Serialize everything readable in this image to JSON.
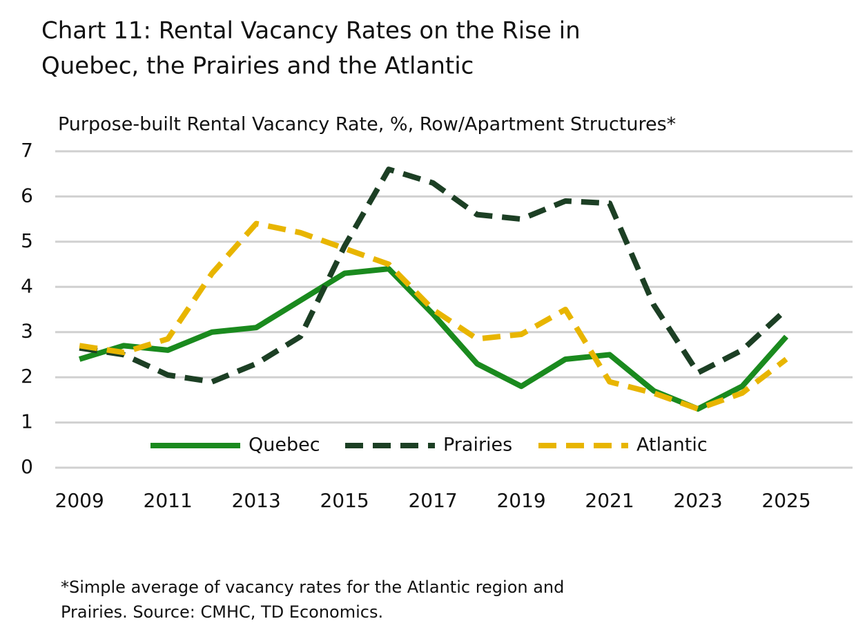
{
  "chart_data": {
    "type": "line",
    "title": [
      "Chart 11: Rental Vacancy Rates on the Rise in",
      "Quebec, the Prairies and the Atlantic"
    ],
    "subtitle": "Purpose-built Rental Vacancy Rate, %, Row/Apartment Structures*",
    "footnote": [
      "*Simple average of vacancy rates for the Atlantic region and",
      "Prairies. Source: CMHC, TD Economics."
    ],
    "x": [
      2009,
      2010,
      2011,
      2012,
      2013,
      2014,
      2015,
      2016,
      2017,
      2018,
      2019,
      2020,
      2021,
      2022,
      2023,
      2024,
      2025
    ],
    "series": [
      {
        "name": "Quebec",
        "color": "#1a8a1e",
        "dash": "solid",
        "values": [
          2.4,
          2.7,
          2.6,
          3.0,
          3.1,
          3.7,
          4.3,
          4.4,
          3.4,
          2.3,
          1.8,
          2.4,
          2.5,
          1.7,
          1.3,
          1.8,
          2.9
        ]
      },
      {
        "name": "Prairies",
        "color": "#1c3f24",
        "dash": "dashed",
        "values": [
          2.65,
          2.5,
          2.05,
          1.9,
          2.3,
          2.9,
          4.9,
          6.6,
          6.3,
          5.6,
          5.5,
          5.9,
          5.85,
          3.6,
          2.1,
          2.6,
          3.5
        ]
      },
      {
        "name": "Atlantic",
        "color": "#e8b500",
        "dash": "dashed",
        "values": [
          2.7,
          2.55,
          2.85,
          4.3,
          5.4,
          5.2,
          4.85,
          4.5,
          3.5,
          2.85,
          2.95,
          3.5,
          1.9,
          1.65,
          1.3,
          1.65,
          2.4
        ]
      }
    ],
    "xlim": [
      2008.45,
      2026.5
    ],
    "xticks": [
      2009,
      2011,
      2013,
      2015,
      2017,
      2019,
      2021,
      2023,
      2025
    ],
    "ylim": [
      0,
      7
    ],
    "yticks": [
      0,
      1,
      2,
      3,
      4,
      5,
      6,
      7
    ],
    "grid": true,
    "legend": "bottom"
  }
}
